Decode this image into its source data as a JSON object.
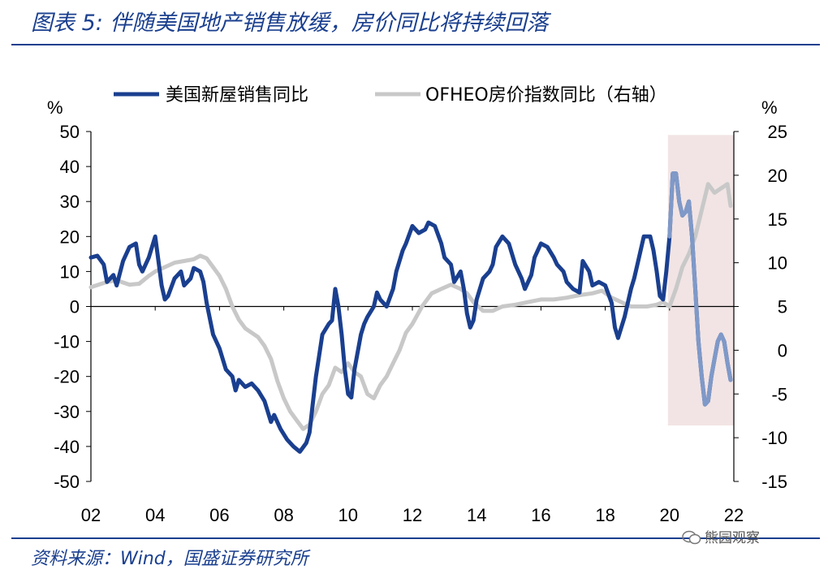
{
  "header": {
    "title": "图表 5:  伴随美国地产销售放缓，房价同比将持续回落"
  },
  "footer": {
    "source": "资料来源：Wind，国盛证券研究所",
    "watermark": "熊园观察"
  },
  "colors": {
    "blue": "#1a3f8f",
    "gray": "#c8c8c8",
    "shade": "#f2e4e4"
  },
  "chart_data": {
    "type": "line",
    "title": "伴随美国地产销售放缓，房价同比将持续回落",
    "x_range": [
      2002.0,
      2022.0
    ],
    "x_tick_values": [
      2002,
      2004,
      2006,
      2008,
      2010,
      2012,
      2014,
      2016,
      2018,
      2020,
      2022
    ],
    "x_tick_labels": [
      "02",
      "04",
      "06",
      "08",
      "10",
      "12",
      "14",
      "16",
      "18",
      "20",
      "22"
    ],
    "left_axis": {
      "unit": "%",
      "range": [
        -50,
        50
      ],
      "ticks": [
        50,
        40,
        30,
        20,
        10,
        0,
        -10,
        -20,
        -30,
        -40,
        -50
      ]
    },
    "right_axis": {
      "unit": "%",
      "range": [
        -15,
        25
      ],
      "ticks": [
        25,
        20,
        15,
        10,
        5,
        0,
        -5,
        -10,
        -15
      ]
    },
    "shaded_region": {
      "x_range": [
        2019.95,
        2022.0
      ],
      "y_range_left": [
        -34,
        49
      ],
      "note": "forecast"
    },
    "series": [
      {
        "name": "美国新屋销售同比",
        "axis": "left",
        "color": "#1a3f8f",
        "points": [
          [
            2002.0,
            14
          ],
          [
            2002.2,
            14.5
          ],
          [
            2002.4,
            12
          ],
          [
            2002.5,
            7
          ],
          [
            2002.7,
            9
          ],
          [
            2002.8,
            6
          ],
          [
            2003.0,
            13
          ],
          [
            2003.2,
            17
          ],
          [
            2003.4,
            18
          ],
          [
            2003.5,
            12
          ],
          [
            2003.6,
            10
          ],
          [
            2003.8,
            14
          ],
          [
            2004.0,
            20
          ],
          [
            2004.1,
            13
          ],
          [
            2004.2,
            6
          ],
          [
            2004.3,
            2
          ],
          [
            2004.4,
            3
          ],
          [
            2004.6,
            8
          ],
          [
            2004.8,
            10
          ],
          [
            2004.9,
            6
          ],
          [
            2005.1,
            8
          ],
          [
            2005.2,
            11
          ],
          [
            2005.4,
            10
          ],
          [
            2005.5,
            7
          ],
          [
            2005.6,
            1
          ],
          [
            2005.8,
            -8
          ],
          [
            2006.0,
            -12
          ],
          [
            2006.2,
            -18
          ],
          [
            2006.4,
            -20
          ],
          [
            2006.5,
            -24
          ],
          [
            2006.6,
            -21
          ],
          [
            2006.8,
            -23
          ],
          [
            2007.0,
            -22
          ],
          [
            2007.2,
            -24
          ],
          [
            2007.4,
            -27
          ],
          [
            2007.5,
            -30
          ],
          [
            2007.6,
            -33
          ],
          [
            2007.7,
            -31
          ],
          [
            2007.9,
            -35
          ],
          [
            2008.1,
            -38
          ],
          [
            2008.3,
            -40
          ],
          [
            2008.5,
            -41.5
          ],
          [
            2008.7,
            -39
          ],
          [
            2008.8,
            -36
          ],
          [
            2008.9,
            -28
          ],
          [
            2009.0,
            -20
          ],
          [
            2009.1,
            -14
          ],
          [
            2009.2,
            -8
          ],
          [
            2009.4,
            -5
          ],
          [
            2009.5,
            -4
          ],
          [
            2009.6,
            5
          ],
          [
            2009.7,
            0
          ],
          [
            2009.8,
            -8
          ],
          [
            2009.9,
            -18
          ],
          [
            2010.0,
            -25
          ],
          [
            2010.1,
            -26
          ],
          [
            2010.2,
            -18
          ],
          [
            2010.4,
            -8
          ],
          [
            2010.5,
            -5
          ],
          [
            2010.6,
            -3
          ],
          [
            2010.8,
            0
          ],
          [
            2010.9,
            4
          ],
          [
            2011.0,
            2
          ],
          [
            2011.2,
            0
          ],
          [
            2011.4,
            5
          ],
          [
            2011.5,
            10
          ],
          [
            2011.7,
            16
          ],
          [
            2011.8,
            18
          ],
          [
            2012.0,
            23
          ],
          [
            2012.2,
            21
          ],
          [
            2012.4,
            22
          ],
          [
            2012.5,
            24
          ],
          [
            2012.7,
            23
          ],
          [
            2012.9,
            18
          ],
          [
            2013.0,
            14
          ],
          [
            2013.2,
            12
          ],
          [
            2013.3,
            7
          ],
          [
            2013.5,
            10
          ],
          [
            2013.6,
            5
          ],
          [
            2013.7,
            -2
          ],
          [
            2013.8,
            -6
          ],
          [
            2013.9,
            -4
          ],
          [
            2014.0,
            2
          ],
          [
            2014.2,
            8
          ],
          [
            2014.4,
            10
          ],
          [
            2014.5,
            12
          ],
          [
            2014.6,
            17
          ],
          [
            2014.8,
            20
          ],
          [
            2015.0,
            18
          ],
          [
            2015.2,
            12
          ],
          [
            2015.4,
            8
          ],
          [
            2015.5,
            5
          ],
          [
            2015.7,
            9
          ],
          [
            2015.8,
            14
          ],
          [
            2016.0,
            18
          ],
          [
            2016.2,
            17
          ],
          [
            2016.4,
            14
          ],
          [
            2016.5,
            12
          ],
          [
            2016.7,
            10
          ],
          [
            2016.8,
            7
          ],
          [
            2017.0,
            5
          ],
          [
            2017.2,
            4
          ],
          [
            2017.3,
            13
          ],
          [
            2017.5,
            10
          ],
          [
            2017.6,
            6
          ],
          [
            2017.8,
            7
          ],
          [
            2018.0,
            6
          ],
          [
            2018.2,
            1
          ],
          [
            2018.3,
            -6
          ],
          [
            2018.4,
            -9
          ],
          [
            2018.6,
            -3
          ],
          [
            2018.8,
            5
          ],
          [
            2018.9,
            8
          ],
          [
            2019.0,
            12
          ],
          [
            2019.2,
            20
          ],
          [
            2019.4,
            20
          ],
          [
            2019.5,
            16
          ],
          [
            2019.6,
            10
          ],
          [
            2019.7,
            3
          ],
          [
            2019.8,
            2
          ],
          [
            2019.9,
            10
          ],
          [
            2020.0,
            20
          ],
          [
            2020.1,
            38
          ],
          [
            2020.2,
            38
          ],
          [
            2020.3,
            30
          ],
          [
            2020.4,
            26
          ],
          [
            2020.5,
            27
          ],
          [
            2020.6,
            30
          ],
          [
            2020.7,
            20
          ],
          [
            2020.8,
            5
          ],
          [
            2020.9,
            -10
          ],
          [
            2021.0,
            -20
          ],
          [
            2021.1,
            -28
          ],
          [
            2021.2,
            -27
          ],
          [
            2021.3,
            -20
          ],
          [
            2021.4,
            -15
          ],
          [
            2021.5,
            -10
          ],
          [
            2021.6,
            -8
          ],
          [
            2021.7,
            -10
          ],
          [
            2021.8,
            -16
          ],
          [
            2021.9,
            -21
          ]
        ]
      },
      {
        "name": "OFHEO房价指数同比（右轴）",
        "axis": "right",
        "color": "#c8c8c8",
        "points": [
          [
            2002.0,
            7.2
          ],
          [
            2002.5,
            7.8
          ],
          [
            2002.8,
            8.0
          ],
          [
            2003.2,
            7.5
          ],
          [
            2003.5,
            7.6
          ],
          [
            2003.8,
            8.5
          ],
          [
            2004.0,
            9.0
          ],
          [
            2004.3,
            9.5
          ],
          [
            2004.6,
            10.0
          ],
          [
            2004.9,
            10.2
          ],
          [
            2005.2,
            10.4
          ],
          [
            2005.4,
            10.8
          ],
          [
            2005.6,
            10.5
          ],
          [
            2005.8,
            9.5
          ],
          [
            2006.0,
            8.5
          ],
          [
            2006.2,
            7.0
          ],
          [
            2006.4,
            5.0
          ],
          [
            2006.6,
            3.5
          ],
          [
            2006.8,
            2.5
          ],
          [
            2007.0,
            2.0
          ],
          [
            2007.2,
            1.5
          ],
          [
            2007.4,
            0.5
          ],
          [
            2007.6,
            -1.0
          ],
          [
            2007.8,
            -3.5
          ],
          [
            2008.0,
            -5.5
          ],
          [
            2008.2,
            -7.0
          ],
          [
            2008.4,
            -8.0
          ],
          [
            2008.6,
            -9.0
          ],
          [
            2008.8,
            -8.5
          ],
          [
            2009.0,
            -7.0
          ],
          [
            2009.2,
            -5.0
          ],
          [
            2009.4,
            -4.0
          ],
          [
            2009.6,
            -2.0
          ],
          [
            2009.8,
            -2.5
          ],
          [
            2010.0,
            -1.5
          ],
          [
            2010.2,
            -2.5
          ],
          [
            2010.4,
            -3.0
          ],
          [
            2010.6,
            -5.0
          ],
          [
            2010.8,
            -5.5
          ],
          [
            2011.0,
            -4.0
          ],
          [
            2011.2,
            -3.0
          ],
          [
            2011.4,
            -1.5
          ],
          [
            2011.6,
            0.0
          ],
          [
            2011.8,
            2.0
          ],
          [
            2012.0,
            3.0
          ],
          [
            2012.3,
            5.0
          ],
          [
            2012.6,
            6.5
          ],
          [
            2012.9,
            7.0
          ],
          [
            2013.2,
            7.5
          ],
          [
            2013.5,
            7.0
          ],
          [
            2013.7,
            6.5
          ],
          [
            2013.9,
            5.5
          ],
          [
            2014.2,
            4.5
          ],
          [
            2014.5,
            4.5
          ],
          [
            2014.8,
            5.0
          ],
          [
            2015.2,
            5.2
          ],
          [
            2015.6,
            5.5
          ],
          [
            2016.0,
            5.8
          ],
          [
            2016.4,
            5.8
          ],
          [
            2016.8,
            6.0
          ],
          [
            2017.2,
            6.3
          ],
          [
            2017.6,
            6.5
          ],
          [
            2017.9,
            6.8
          ],
          [
            2018.2,
            6.0
          ],
          [
            2018.5,
            5.5
          ],
          [
            2018.8,
            5.0
          ],
          [
            2019.0,
            5.0
          ],
          [
            2019.3,
            5.0
          ],
          [
            2019.6,
            5.2
          ],
          [
            2019.8,
            5.5
          ],
          [
            2020.0,
            5.0
          ],
          [
            2020.2,
            7.0
          ],
          [
            2020.4,
            9.5
          ],
          [
            2020.6,
            11.0
          ],
          [
            2020.8,
            13.0
          ],
          [
            2021.0,
            16.0
          ],
          [
            2021.2,
            19.0
          ],
          [
            2021.4,
            18.0
          ],
          [
            2021.6,
            18.5
          ],
          [
            2021.8,
            19.0
          ],
          [
            2021.9,
            16.5
          ]
        ]
      }
    ]
  }
}
